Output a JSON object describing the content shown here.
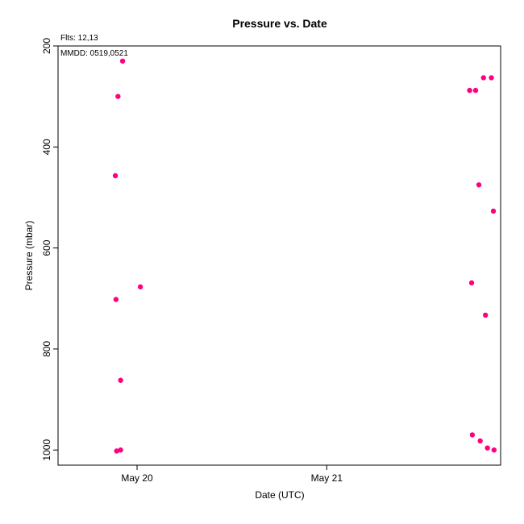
{
  "chart_data": {
    "type": "scatter",
    "title": "Pressure  vs. Date",
    "xlabel": "Date (UTC)",
    "ylabel": "Pressure (mbar)",
    "annotations": {
      "flights": "Flts: 12,13",
      "dates": "MMDD: 0519,0521"
    },
    "x_axis": {
      "type": "date",
      "range": [
        "2023-05-19T14:00",
        "2023-05-21T22:00"
      ],
      "ticks": [
        {
          "value": "2023-05-20T00:00",
          "label": "May 20"
        },
        {
          "value": "2023-05-21T00:00",
          "label": "May 21"
        }
      ]
    },
    "y_axis": {
      "range": [
        200,
        1030
      ],
      "inverted": true,
      "ticks": [
        200,
        400,
        600,
        800,
        1000
      ]
    },
    "grid": false,
    "color": "#ff0080",
    "points": [
      {
        "x": "2023-05-19T21:25",
        "y": 1002
      },
      {
        "x": "2023-05-19T21:55",
        "y": 1000
      },
      {
        "x": "2023-05-19T21:55",
        "y": 862
      },
      {
        "x": "2023-05-19T21:20",
        "y": 702
      },
      {
        "x": "2023-05-20T00:25",
        "y": 677
      },
      {
        "x": "2023-05-19T21:15",
        "y": 457
      },
      {
        "x": "2023-05-19T21:35",
        "y": 300
      },
      {
        "x": "2023-05-19T22:10",
        "y": 230
      },
      {
        "x": "2023-05-21T18:05",
        "y": 288
      },
      {
        "x": "2023-05-21T18:50",
        "y": 288
      },
      {
        "x": "2023-05-21T19:50",
        "y": 263
      },
      {
        "x": "2023-05-21T20:50",
        "y": 263
      },
      {
        "x": "2023-05-21T19:15",
        "y": 475
      },
      {
        "x": "2023-05-21T21:05",
        "y": 527
      },
      {
        "x": "2023-05-21T18:20",
        "y": 669
      },
      {
        "x": "2023-05-21T20:05",
        "y": 733
      },
      {
        "x": "2023-05-21T18:25",
        "y": 970
      },
      {
        "x": "2023-05-21T19:25",
        "y": 982
      },
      {
        "x": "2023-05-21T20:20",
        "y": 996
      },
      {
        "x": "2023-05-21T21:10",
        "y": 1000
      }
    ]
  }
}
